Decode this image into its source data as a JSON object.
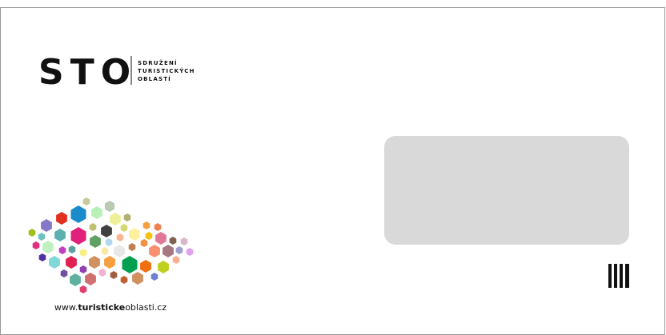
{
  "logo": {
    "mark": "STO",
    "tagline": [
      "SDRUŽENÍ",
      "TURISTICKÝCH",
      "OBLASTÍ"
    ]
  },
  "website": {
    "prefix": "www.",
    "bold": "turisticke",
    "suffix": "oblasti.cz"
  }
}
